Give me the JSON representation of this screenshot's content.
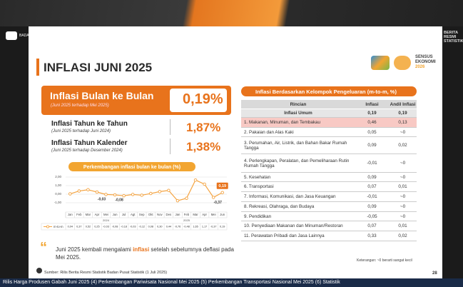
{
  "top": {
    "org": "BADAN PUSAT STATISTIK",
    "right": "BERITA RESMI STATISTIK"
  },
  "header": {
    "title": "INFLASI JUNI 2025",
    "logo": [
      "SENSUS",
      "EKONOMI",
      "2026"
    ]
  },
  "summary": [
    {
      "title": "Inflasi Bulan ke Bulan",
      "subtitle": "(Juni 2025 terhadap Mei 2025)",
      "value": "0,19%"
    },
    {
      "title": "Inflasi Tahun ke Tahun",
      "subtitle": "(Juni 2025 terhadap Juni 2024)",
      "value": "1,87%"
    },
    {
      "title": "Inflasi Tahun Kalender",
      "subtitle": "(Juni 2025 terhadap Desember 2024)",
      "value": "1,38%"
    }
  ],
  "chart_data": {
    "type": "line",
    "title": "Perkembangan inflasi bulan ke bulan (%)",
    "categories": [
      "Jan",
      "Feb",
      "Mar",
      "Apr",
      "Mei",
      "Jun",
      "Jul",
      "Agt",
      "Sep",
      "Okt",
      "Nov",
      "Des",
      "Jan",
      "Feb",
      "Mar",
      "Apr",
      "Mei",
      "Jun"
    ],
    "groups": [
      "2024",
      "2025"
    ],
    "series": [
      {
        "name": "m-to-m",
        "color": "#f4a340",
        "values": [
          0.04,
          0.37,
          0.52,
          0.25,
          -0.03,
          -0.08,
          -0.18,
          -0.03,
          -0.12,
          0.08,
          0.3,
          0.44,
          -0.76,
          -0.48,
          1.65,
          1.17,
          -0.37,
          0.19
        ],
        "value_labels": [
          "0,04",
          "0,37",
          "0,52",
          "0,25",
          "-0,03",
          "-0,08",
          "-0,18",
          "-0,03",
          "-0,12",
          "0,08",
          "0,30",
          "0,44",
          "-0,76",
          "-0,48",
          "1,65",
          "1,17",
          "-0,37",
          "0,19"
        ]
      }
    ],
    "ylim": [
      -1,
      2
    ],
    "yticks": [
      {
        "value": 2,
        "label": "2,00"
      },
      {
        "value": 1,
        "label": "1,00"
      },
      {
        "value": 0,
        "label": "0,00"
      },
      {
        "value": -1,
        "label": "-1,00"
      }
    ],
    "grid": true
  },
  "quote": {
    "before": "Juni 2025 kembali mengalami ",
    "highlight": "inflasi",
    "after": " setelah sebelumnya deflasi pada Mei 2025."
  },
  "table": {
    "title": "Inflasi Berdasarkan Kelompok Pengeluaran (m-to-m, %)",
    "columns": [
      "Rincian",
      "Inflasi",
      "Andil Inflasi"
    ],
    "rows": [
      [
        "Inflasi Umum",
        "0,19",
        "0,19"
      ],
      [
        "1.  Makanan, Minuman, dan Tembakau",
        "0,46",
        "0,13"
      ],
      [
        "2.  Pakaian dan Alas Kaki",
        "0,05",
        "~0"
      ],
      [
        "3.  Perumahan, Air, Listrik, dan Bahan Bakar Rumah Tangga",
        "0,09",
        "0,02"
      ],
      [
        "4.  Perlengkapan, Peralatan, dan Pemeliharaan Rutin Rumah Tangga",
        "-0,01",
        "~0"
      ],
      [
        "5.  Kesehatan",
        "0,09",
        "~0"
      ],
      [
        "6.  Transportasi",
        "0,07",
        "0,01"
      ],
      [
        "7.  Informasi, Komunikasi, dan Jasa Keuangan",
        "-0,01",
        "~0"
      ],
      [
        "8.  Rekreasi, Olahraga, dan Budaya",
        "0,09",
        "~0"
      ],
      [
        "9.  Pendidikan",
        "-0,05",
        "~0"
      ],
      [
        "10. Penyediaan Makanan dan Minuman/Restoran",
        "0,07",
        "0,01"
      ],
      [
        "11. Perawatan Pribadi dan Jasa Lainnya",
        "0,33",
        "0,02"
      ]
    ],
    "note": "Keterangan: ~0 berarti sangat kecil"
  },
  "footer": {
    "source": "Sumber: Rilis Berita Resmi Statistik Badan Pusat Statistik (1 Juli 2025)",
    "page": "28",
    "ticker": "Rilis Harga Produsen Gabah Juni 2025 (4) Perkembangan Pariwisata Nasional Mei 2025 (5) Perkembangan Transportasi Nasional Mei 2025 (6) Statistik"
  }
}
